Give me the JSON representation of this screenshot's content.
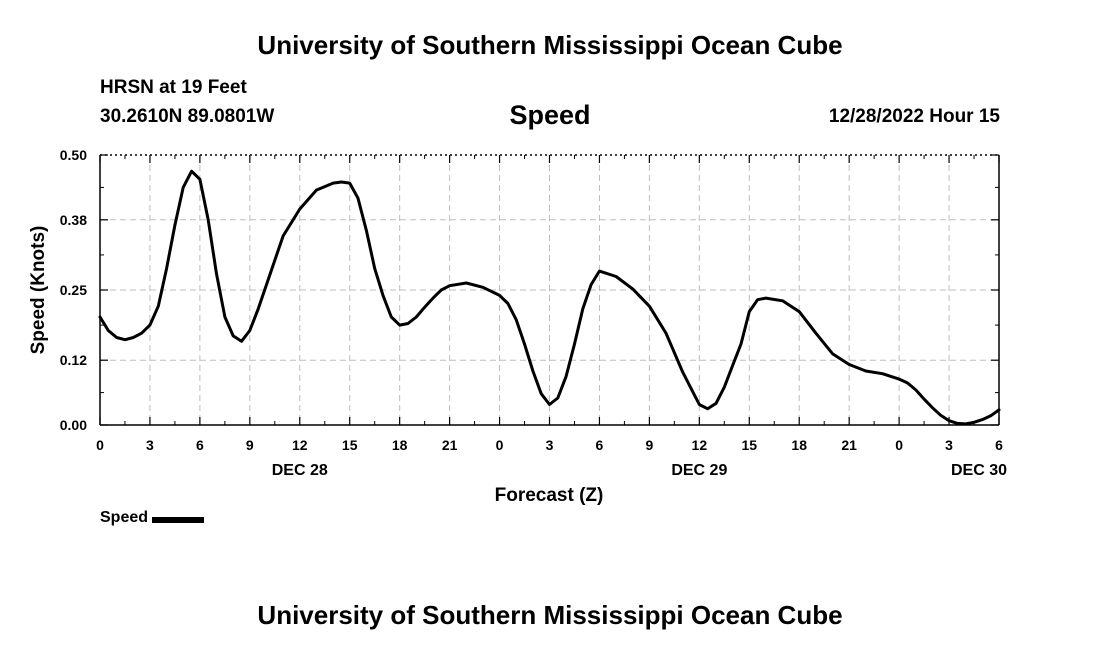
{
  "header": {
    "title": "University of Southern Mississippi Ocean Cube",
    "station": "HRSN at 19 Feet",
    "coords": "30.2610N  89.0801W",
    "timestamp": "12/28/2022 Hour 15"
  },
  "footer": {
    "title": "University of Southern Mississippi Ocean Cube"
  },
  "chart_data": {
    "type": "line",
    "title": "Speed",
    "xlabel": "Forecast (Z)",
    "ylabel": "Speed (Knots)",
    "ylim": [
      0,
      0.5
    ],
    "yticks": [
      0.0,
      0.12,
      0.25,
      0.38,
      0.5
    ],
    "ytick_labels": [
      "0.00",
      "0.12",
      "0.25",
      "0.38",
      "0.50"
    ],
    "xlim": [
      0,
      54
    ],
    "xticks": [
      0,
      3,
      6,
      9,
      12,
      15,
      18,
      21,
      24,
      27,
      30,
      33,
      36,
      39,
      42,
      45,
      48,
      51,
      54
    ],
    "xtick_labels": [
      "0",
      "3",
      "6",
      "9",
      "12",
      "15",
      "18",
      "21",
      "0",
      "3",
      "6",
      "9",
      "12",
      "15",
      "18",
      "21",
      "0",
      "3",
      "6"
    ],
    "date_labels": [
      {
        "x": 12,
        "label": "DEC 28"
      },
      {
        "x": 36,
        "label": "DEC 29"
      },
      {
        "x": 52.8,
        "label": "DEC 30"
      }
    ],
    "grid": true,
    "legend": "bottom-left",
    "series": [
      {
        "name": "Speed",
        "color": "#000000",
        "x": [
          0,
          0.5,
          1,
          1.5,
          2,
          2.5,
          3,
          3.5,
          4,
          4.5,
          5,
          5.5,
          6,
          6.5,
          7,
          7.5,
          8,
          8.5,
          9,
          9.5,
          10,
          11,
          12,
          13,
          14,
          14.5,
          15,
          15.5,
          16,
          16.5,
          17,
          17.5,
          18,
          18.5,
          19,
          19.5,
          20,
          20.5,
          21,
          22,
          23,
          24,
          24.5,
          25,
          25.5,
          26,
          26.5,
          27,
          27.5,
          28,
          28.5,
          29,
          29.5,
          30,
          31,
          32,
          33,
          34,
          35,
          36,
          36.5,
          37,
          37.5,
          38,
          38.5,
          39,
          39.5,
          40,
          41,
          42,
          43,
          44,
          45,
          46,
          47,
          48,
          48.5,
          49,
          49.5,
          50,
          50.5,
          51,
          51.5,
          52,
          52.5,
          53,
          53.5,
          54
        ],
        "values": [
          0.2,
          0.175,
          0.162,
          0.158,
          0.162,
          0.17,
          0.185,
          0.22,
          0.29,
          0.37,
          0.44,
          0.47,
          0.455,
          0.38,
          0.28,
          0.2,
          0.165,
          0.155,
          0.175,
          0.215,
          0.26,
          0.35,
          0.4,
          0.435,
          0.448,
          0.45,
          0.448,
          0.42,
          0.36,
          0.29,
          0.24,
          0.2,
          0.185,
          0.188,
          0.2,
          0.218,
          0.235,
          0.25,
          0.258,
          0.263,
          0.255,
          0.24,
          0.225,
          0.195,
          0.15,
          0.1,
          0.058,
          0.038,
          0.05,
          0.09,
          0.15,
          0.215,
          0.26,
          0.285,
          0.275,
          0.252,
          0.22,
          0.17,
          0.098,
          0.038,
          0.03,
          0.04,
          0.07,
          0.11,
          0.15,
          0.21,
          0.232,
          0.235,
          0.23,
          0.21,
          0.17,
          0.132,
          0.112,
          0.1,
          0.095,
          0.085,
          0.078,
          0.065,
          0.048,
          0.032,
          0.018,
          0.008,
          0.003,
          0.002,
          0.005,
          0.01,
          0.017,
          0.028
        ]
      }
    ]
  }
}
